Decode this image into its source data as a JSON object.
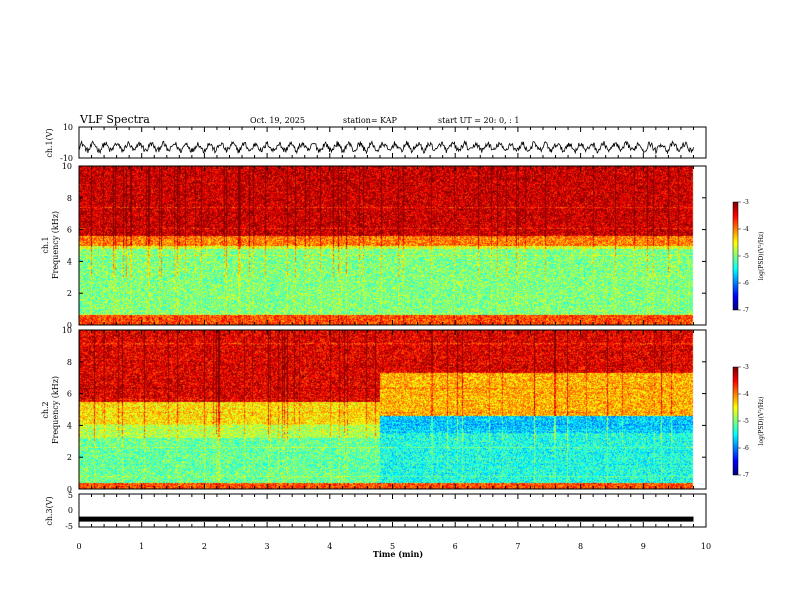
{
  "header": {
    "title": "VLF Spectra",
    "date": "Oct. 19, 2025",
    "station": "station= KAP",
    "start": "start  UT  =   20: 0,  : 1"
  },
  "chart_data": {
    "type": "heatmap",
    "xlabel": "Time  (min)",
    "xlim": [
      0,
      10
    ],
    "xticks": [
      "0",
      "1",
      "2",
      "3",
      "4",
      "5",
      "6",
      "7",
      "8",
      "9",
      "10"
    ],
    "data_end_min": 9.8,
    "panels": [
      {
        "name": "ch1-waveform",
        "type": "line",
        "ylabel": "ch.1(V)",
        "ylim": [
          -10,
          10
        ],
        "yticks": [
          "10",
          "-10"
        ],
        "trace_amplitude_v": [
          -7,
          1
        ]
      },
      {
        "name": "ch1-spectrogram",
        "type": "heatmap",
        "ylabel": [
          "ch.1",
          "Frequency  (kHz)"
        ],
        "ylim": [
          0,
          10
        ],
        "yticks": [
          "0",
          "2",
          "4",
          "6",
          "8",
          "10"
        ],
        "zlabel": "log(PSD)(V²/Hz)",
        "zlim": [
          -7,
          -3
        ],
        "zticks": [
          "-3",
          "-4",
          "-5",
          "-6",
          "-7"
        ],
        "regions": [
          {
            "freq_khz": [
              5.6,
              10
            ],
            "log_psd": -3.3
          },
          {
            "freq_khz": [
              5.0,
              5.6
            ],
            "log_psd": -4.0
          },
          {
            "freq_khz": [
              4.8,
              5.0
            ],
            "log_psd": -4.6
          },
          {
            "freq_khz": [
              0.6,
              4.8
            ],
            "log_psd": -5.0
          },
          {
            "freq_khz": [
              0,
              0.6
            ],
            "log_psd": -3.8
          }
        ]
      },
      {
        "name": "ch2-spectrogram",
        "type": "heatmap",
        "ylabel": [
          "ch.2",
          "Frequency  (kHz)"
        ],
        "ylim": [
          0,
          10
        ],
        "yticks": [
          "0",
          "2",
          "4",
          "6",
          "8",
          "10"
        ],
        "zlabel": "log(PSD)(V²/Hz)",
        "zlim": [
          -7,
          -3
        ],
        "zticks": [
          "-3",
          "-4",
          "-5",
          "-6",
          "-7"
        ],
        "change_time_min": 4.8,
        "regions_before": [
          {
            "freq_khz": [
              5.5,
              10
            ],
            "log_psd": -3.4
          },
          {
            "freq_khz": [
              4.0,
              5.5
            ],
            "log_psd": -4.4
          },
          {
            "freq_khz": [
              3.2,
              4.0
            ],
            "log_psd": -4.8
          },
          {
            "freq_khz": [
              0.4,
              3.2
            ],
            "log_psd": -5.1
          },
          {
            "freq_khz": [
              0,
              0.4
            ],
            "log_psd": -3.8
          }
        ],
        "regions_after": [
          {
            "freq_khz": [
              7.3,
              10
            ],
            "log_psd": -3.4
          },
          {
            "freq_khz": [
              4.6,
              7.3
            ],
            "log_psd": -4.2
          },
          {
            "freq_khz": [
              3.5,
              4.6
            ],
            "log_psd": -5.7
          },
          {
            "freq_khz": [
              0.4,
              3.5
            ],
            "log_psd": -5.4
          },
          {
            "freq_khz": [
              0,
              0.4
            ],
            "log_psd": -3.8
          }
        ]
      },
      {
        "name": "ch3-waveform",
        "type": "line",
        "ylabel": "ch.3(V)",
        "ylim": [
          -5,
          5
        ],
        "yticks": [
          "5",
          "0",
          "-5"
        ],
        "level_v": -2.6
      }
    ]
  }
}
